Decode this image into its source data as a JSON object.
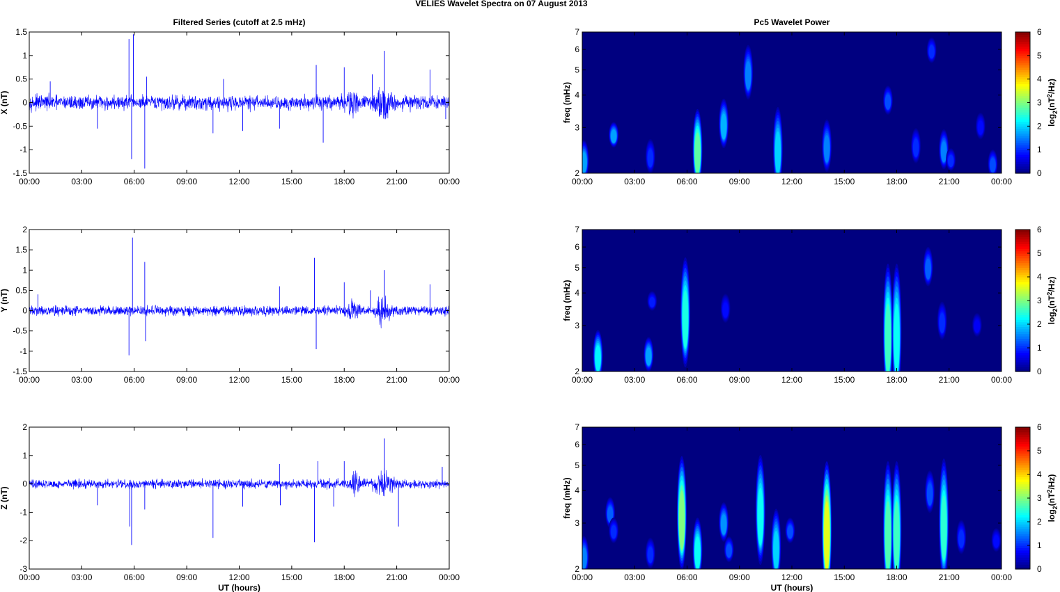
{
  "figure_title": "VELIES Wavelet Spectra on 07 August    2013",
  "chart_data": [
    {
      "type": "line",
      "title": "Filtered Series (cutoff at 2.5 mHz)",
      "ylabel": "X (nT)",
      "xlabel": "",
      "x_ticks": [
        "00:00",
        "03:00",
        "06:00",
        "09:00",
        "12:00",
        "15:00",
        "18:00",
        "21:00",
        "00:00"
      ],
      "xlim_hours": [
        0,
        24
      ],
      "ylim": [
        -1.5,
        1.5
      ],
      "y_ticks": [
        "-1.5",
        "-1",
        "-0.5",
        "0",
        "0.5",
        "1",
        "1.5"
      ],
      "color": "#0000ff",
      "noise_amplitude": 0.13,
      "spikes": [
        [
          1.2,
          0.45
        ],
        [
          3.9,
          -0.55
        ],
        [
          5.7,
          1.35
        ],
        [
          5.85,
          -1.2
        ],
        [
          5.95,
          1.45
        ],
        [
          6.6,
          -1.4
        ],
        [
          6.7,
          0.55
        ],
        [
          10.5,
          -0.65
        ],
        [
          11.1,
          0.5
        ],
        [
          12.2,
          -0.6
        ],
        [
          14.3,
          -0.55
        ],
        [
          16.4,
          0.8
        ],
        [
          16.8,
          -0.85
        ],
        [
          18.0,
          0.75
        ],
        [
          19.6,
          0.6
        ],
        [
          20.3,
          1.1
        ],
        [
          22.9,
          0.7
        ],
        [
          23.8,
          -0.35
        ]
      ],
      "bursts": [
        [
          20.3,
          1.0,
          0.45
        ],
        [
          18.5,
          0.8,
          0.25
        ]
      ]
    },
    {
      "type": "line",
      "title": "",
      "ylabel": "Y (nT)",
      "xlabel": "",
      "x_ticks": [
        "00:00",
        "03:00",
        "06:00",
        "09:00",
        "12:00",
        "15:00",
        "18:00",
        "21:00",
        "00:00"
      ],
      "xlim_hours": [
        0,
        24
      ],
      "ylim": [
        -1.5,
        2
      ],
      "y_ticks": [
        "-1.5",
        "-1",
        "-0.5",
        "0",
        "0.5",
        "1",
        "1.5",
        "2"
      ],
      "color": "#0000ff",
      "noise_amplitude": 0.1,
      "spikes": [
        [
          0.5,
          0.4
        ],
        [
          5.7,
          -1.1
        ],
        [
          5.9,
          1.8
        ],
        [
          6.6,
          1.2
        ],
        [
          6.65,
          -0.75
        ],
        [
          14.3,
          0.6
        ],
        [
          16.3,
          1.3
        ],
        [
          16.4,
          -0.95
        ],
        [
          18.0,
          0.7
        ],
        [
          19.5,
          0.5
        ],
        [
          20.3,
          1.0
        ],
        [
          22.9,
          0.65
        ]
      ],
      "bursts": [
        [
          20.2,
          1.0,
          0.4
        ],
        [
          18.5,
          0.8,
          0.3
        ]
      ]
    },
    {
      "type": "line",
      "title": "",
      "ylabel": "Z (nT)",
      "xlabel": "UT (hours)",
      "x_ticks": [
        "00:00",
        "03:00",
        "06:00",
        "09:00",
        "12:00",
        "15:00",
        "18:00",
        "21:00",
        "00:00"
      ],
      "xlim_hours": [
        0,
        24
      ],
      "ylim": [
        -3,
        2
      ],
      "y_ticks": [
        "-3",
        "-2",
        "-1",
        "0",
        "1",
        "2"
      ],
      "color": "#0000ff",
      "noise_amplitude": 0.13,
      "spikes": [
        [
          3.9,
          -0.75
        ],
        [
          5.75,
          -1.5
        ],
        [
          5.85,
          -2.15
        ],
        [
          6.6,
          -0.9
        ],
        [
          10.5,
          -1.9
        ],
        [
          12.2,
          -0.8
        ],
        [
          14.3,
          0.7
        ],
        [
          14.35,
          -0.75
        ],
        [
          16.3,
          -2.05
        ],
        [
          16.5,
          0.8
        ],
        [
          17.4,
          -0.8
        ],
        [
          18.0,
          0.8
        ],
        [
          20.3,
          1.6
        ],
        [
          21.1,
          -1.5
        ],
        [
          23.6,
          0.6
        ]
      ],
      "bursts": [
        [
          20.3,
          1.1,
          0.5
        ],
        [
          18.6,
          0.9,
          0.3
        ]
      ]
    },
    {
      "type": "heatmap",
      "title": "Pc5 Wavelet Power",
      "ylabel": "freq (mHz)",
      "xlabel": "",
      "x_ticks": [
        "00:00",
        "03:00",
        "06:00",
        "09:00",
        "12:00",
        "15:00",
        "18:00",
        "21:00",
        "00:00"
      ],
      "xlim_hours": [
        0,
        24
      ],
      "yscale": "log",
      "ylim_mHz": [
        2,
        7
      ],
      "y_ticks": [
        "2",
        "3",
        "4",
        "5",
        "6",
        "7"
      ],
      "colorbar_label": "log2(nT2/Hz)",
      "colorbar_ticks": [
        "0",
        "1",
        "2",
        "3",
        "4",
        "5",
        "6"
      ],
      "colorbar_range": [
        0,
        6
      ],
      "colormap": "jet",
      "blobs": [
        [
          0.1,
          2,
          2.9,
          1.7
        ],
        [
          1.8,
          2.6,
          3.3,
          1.7
        ],
        [
          3.9,
          2.1,
          2.9,
          1.0
        ],
        [
          6.6,
          2,
          4.2,
          2.8
        ],
        [
          8.1,
          2.7,
          4.3,
          1.8
        ],
        [
          9.5,
          4.2,
          7,
          1.5
        ],
        [
          11.2,
          2,
          4.3,
          2.0
        ],
        [
          14.0,
          2.2,
          3.6,
          1.5
        ],
        [
          17.5,
          3.5,
          4.6,
          1.2
        ],
        [
          19.1,
          2.3,
          3.2,
          1.0
        ],
        [
          20.7,
          2.2,
          3.2,
          1.5
        ],
        [
          21.1,
          2.1,
          2.6,
          1.0
        ],
        [
          22.8,
          2.8,
          3.6,
          0.8
        ],
        [
          23.5,
          2.0,
          2.6,
          1.2
        ],
        [
          20.0,
          5.5,
          7,
          1.0
        ]
      ]
    },
    {
      "type": "heatmap",
      "title": "",
      "ylabel": "freq (mHz)",
      "xlabel": "",
      "x_ticks": [
        "00:00",
        "03:00",
        "06:00",
        "09:00",
        "12:00",
        "15:00",
        "18:00",
        "21:00",
        "00:00"
      ],
      "xlim_hours": [
        0,
        24
      ],
      "yscale": "log",
      "ylim_mHz": [
        2,
        7
      ],
      "y_ticks": [
        "2",
        "3",
        "4",
        "5",
        "6",
        "7"
      ],
      "colorbar_label": "log2(nT2/Hz)",
      "colorbar_ticks": [
        "0",
        "1",
        "2",
        "3",
        "4",
        "5",
        "6"
      ],
      "colorbar_range": [
        0,
        6
      ],
      "colormap": "jet",
      "blobs": [
        [
          0.9,
          2,
          3.2,
          2.2
        ],
        [
          3.8,
          2.1,
          2.9,
          1.7
        ],
        [
          4.0,
          3.5,
          4.2,
          0.9
        ],
        [
          5.9,
          2.5,
          7,
          2.4
        ],
        [
          8.2,
          3.2,
          4.2,
          0.8
        ],
        [
          17.5,
          2,
          7,
          2.6
        ],
        [
          18.0,
          2,
          7,
          2.3
        ],
        [
          19.8,
          4.5,
          6.5,
          1.3
        ],
        [
          20.6,
          2.8,
          4.0,
          1.0
        ],
        [
          22.6,
          2.8,
          3.5,
          0.7
        ]
      ]
    },
    {
      "type": "heatmap",
      "title": "",
      "ylabel": "freq (mHz)",
      "xlabel": "UT (hours)",
      "x_ticks": [
        "00:00",
        "03:00",
        "06:00",
        "09:00",
        "12:00",
        "15:00",
        "18:00",
        "21:00",
        "00:00"
      ],
      "xlim_hours": [
        0,
        24
      ],
      "yscale": "log",
      "ylim_mHz": [
        2,
        7
      ],
      "y_ticks": [
        "2",
        "3",
        "4",
        "5",
        "6",
        "7"
      ],
      "colorbar_label": "log2(nT2/Hz)",
      "colorbar_ticks": [
        "0",
        "1",
        "2",
        "3",
        "4",
        "5",
        "6"
      ],
      "colorbar_range": [
        0,
        6
      ],
      "colormap": "jet",
      "blobs": [
        [
          0.1,
          2,
          2.9,
          1.5
        ],
        [
          1.6,
          3.0,
          4.0,
          1.3
        ],
        [
          1.8,
          2.6,
          3.3,
          1.0
        ],
        [
          3.9,
          2.1,
          2.8,
          1.0
        ],
        [
          5.7,
          2.4,
          7,
          3.0
        ],
        [
          6.6,
          2,
          3.6,
          2.3
        ],
        [
          8.1,
          2.7,
          3.9,
          1.6
        ],
        [
          8.4,
          2.2,
          2.8,
          1.2
        ],
        [
          10.2,
          2.5,
          7,
          2.3
        ],
        [
          11.1,
          2,
          4.0,
          2.0
        ],
        [
          11.9,
          2.6,
          3.3,
          1.2
        ],
        [
          14.0,
          2,
          7,
          3.6
        ],
        [
          17.5,
          2,
          7,
          2.7
        ],
        [
          18.0,
          2,
          7,
          2.6
        ],
        [
          19.9,
          3.5,
          5.2,
          1.2
        ],
        [
          20.7,
          2.2,
          7,
          2.5
        ],
        [
          21.7,
          2.4,
          3.3,
          1.0
        ],
        [
          23.7,
          2.4,
          3.0,
          0.8
        ]
      ]
    }
  ]
}
